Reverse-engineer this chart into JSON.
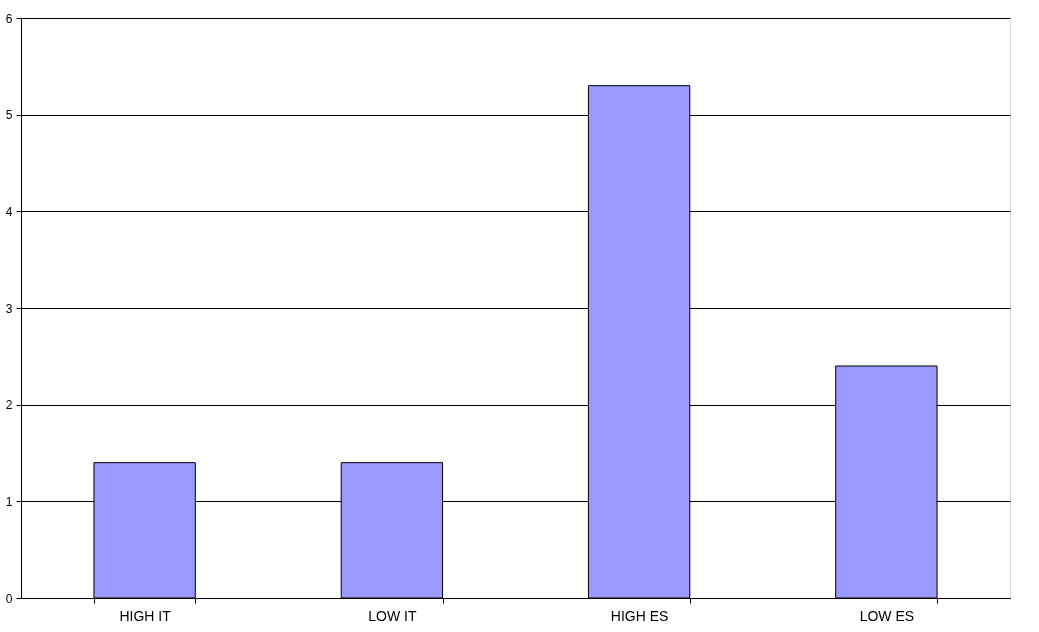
{
  "chart_data": {
    "type": "bar",
    "categories": [
      "HIGH IT",
      "LOW IT",
      "HIGH ES",
      "LOW ES"
    ],
    "values": [
      1.4,
      1.4,
      5.3,
      2.4
    ],
    "color": "#9999ff",
    "ylim": [
      0,
      6
    ],
    "yticks": [
      0,
      1,
      2,
      3,
      4,
      5,
      6
    ],
    "grid": "y"
  }
}
